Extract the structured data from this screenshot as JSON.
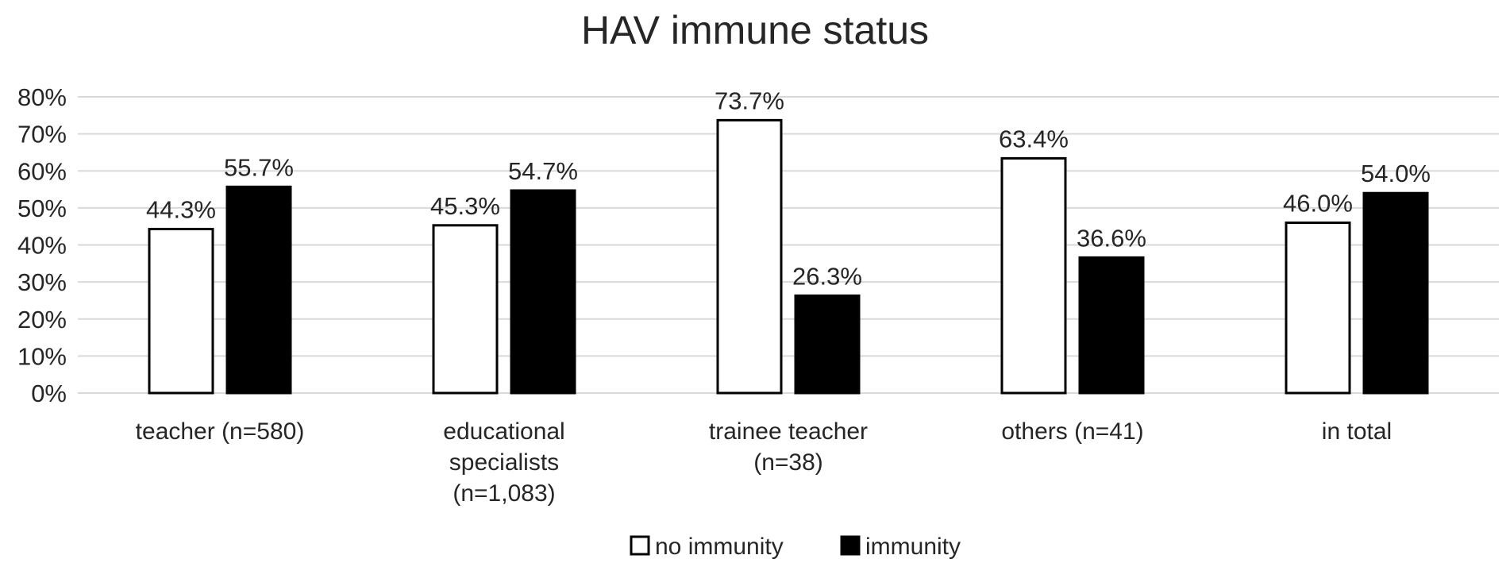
{
  "chart_data": {
    "type": "bar",
    "title": "HAV immune status",
    "xlabel": "",
    "ylabel": "",
    "categories": [
      [
        "teacher (n=580)"
      ],
      [
        "educational",
        "specialists",
        "(n=1,083)"
      ],
      [
        "trainee teacher",
        "(n=38)"
      ],
      [
        "others (n=41)"
      ],
      [
        "in total"
      ]
    ],
    "series": [
      {
        "name": "no immunity",
        "color": "#ffffff",
        "values": [
          44.3,
          45.3,
          73.7,
          63.4,
          46.0
        ],
        "labels": [
          "44.3%",
          "45.3%",
          "73.7%",
          "63.4%",
          "46.0%"
        ]
      },
      {
        "name": "immunity",
        "color": "#000000",
        "values": [
          55.7,
          54.7,
          26.3,
          36.6,
          54.0
        ],
        "labels": [
          "55.7%",
          "54.7%",
          "26.3%",
          "36.6%",
          "54.0%"
        ]
      }
    ],
    "ylim": [
      0,
      80
    ],
    "yticks": [
      "0%",
      "10%",
      "20%",
      "30%",
      "40%",
      "50%",
      "60%",
      "70%",
      "80%"
    ],
    "grid": true,
    "legend_position": "bottom"
  }
}
